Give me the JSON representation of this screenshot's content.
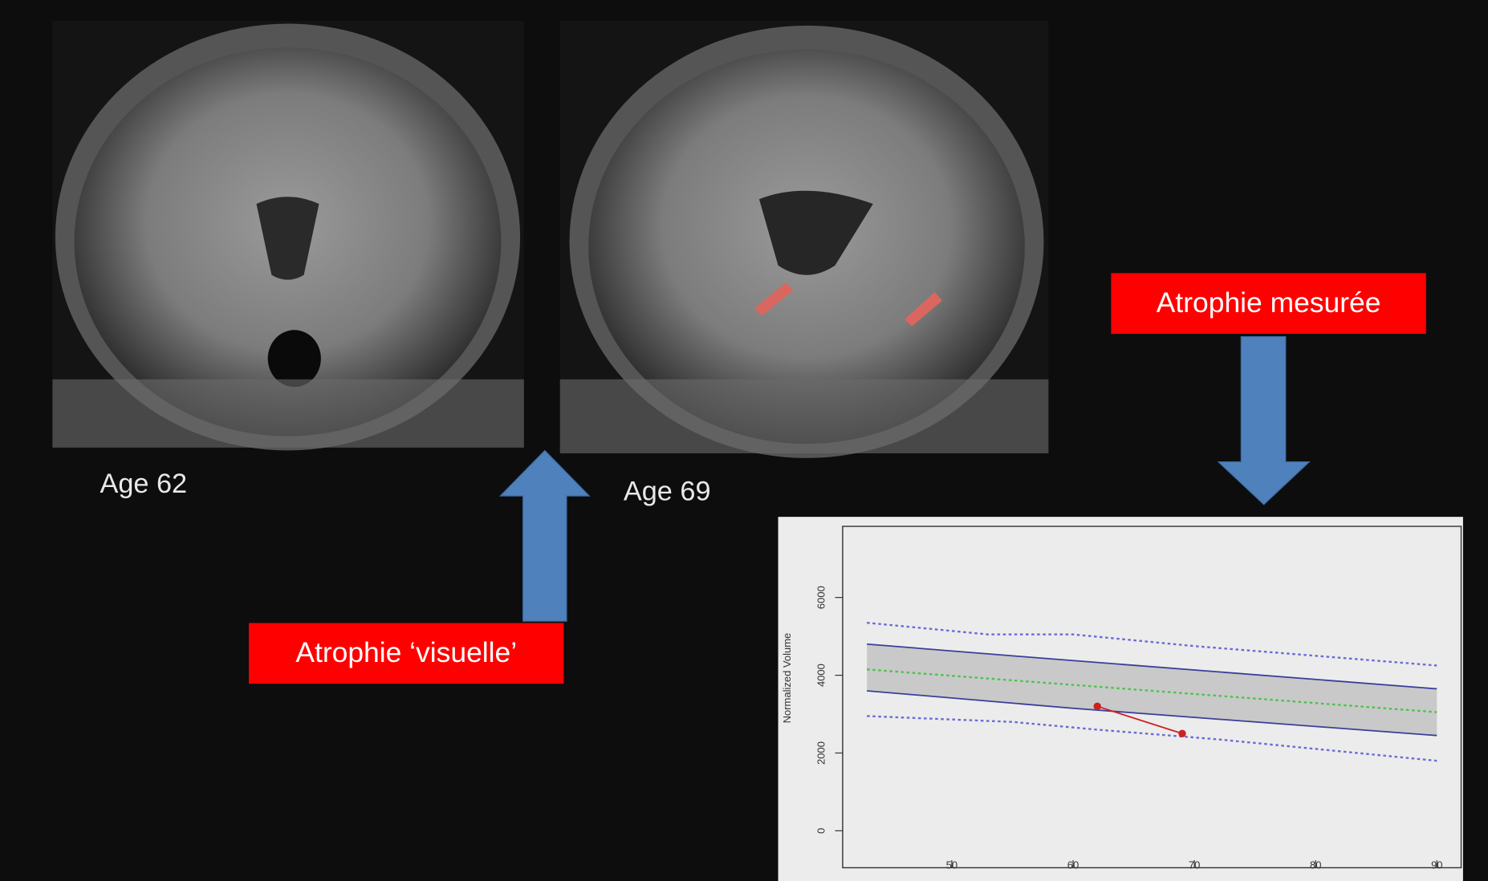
{
  "labels": {
    "age_left": "Age 62",
    "age_right": "Age 69",
    "visual": "Atrophie ‘visuelle’",
    "measured": "Atrophie mesurée"
  },
  "chart_data": {
    "type": "line",
    "ylabel": "Normalized Volume",
    "xlim": [
      41,
      92
    ],
    "ylim": [
      -950,
      7830
    ],
    "xticks": [
      50,
      60,
      70,
      80,
      90
    ],
    "yticks": [
      0,
      2000,
      4000,
      6000
    ],
    "band_fill": "#c9c9c9",
    "series": [
      {
        "color": "#3a3f9a",
        "x": [
          43,
          57,
          90
        ],
        "values": [
          4800,
          4450,
          3650
        ]
      },
      {
        "color": "#3a3f9a",
        "x": [
          43,
          60,
          90
        ],
        "values": [
          3600,
          3150,
          2450
        ]
      },
      {
        "color": "#4cc44c",
        "dash": true,
        "x": [
          43,
          90
        ],
        "values": [
          4150,
          3050
        ]
      },
      {
        "color": "#6a6ad8",
        "dash": true,
        "x": [
          43,
          53,
          60,
          70,
          90
        ],
        "values": [
          5350,
          5050,
          5050,
          4750,
          4250
        ]
      },
      {
        "color": "#6a6ad8",
        "dash": true,
        "x": [
          43,
          55,
          62,
          72,
          90
        ],
        "values": [
          2950,
          2800,
          2600,
          2350,
          1800
        ]
      },
      {
        "color": "#cc2222",
        "points": true,
        "x": [
          62,
          69
        ],
        "values": [
          3200,
          2500
        ]
      }
    ]
  }
}
